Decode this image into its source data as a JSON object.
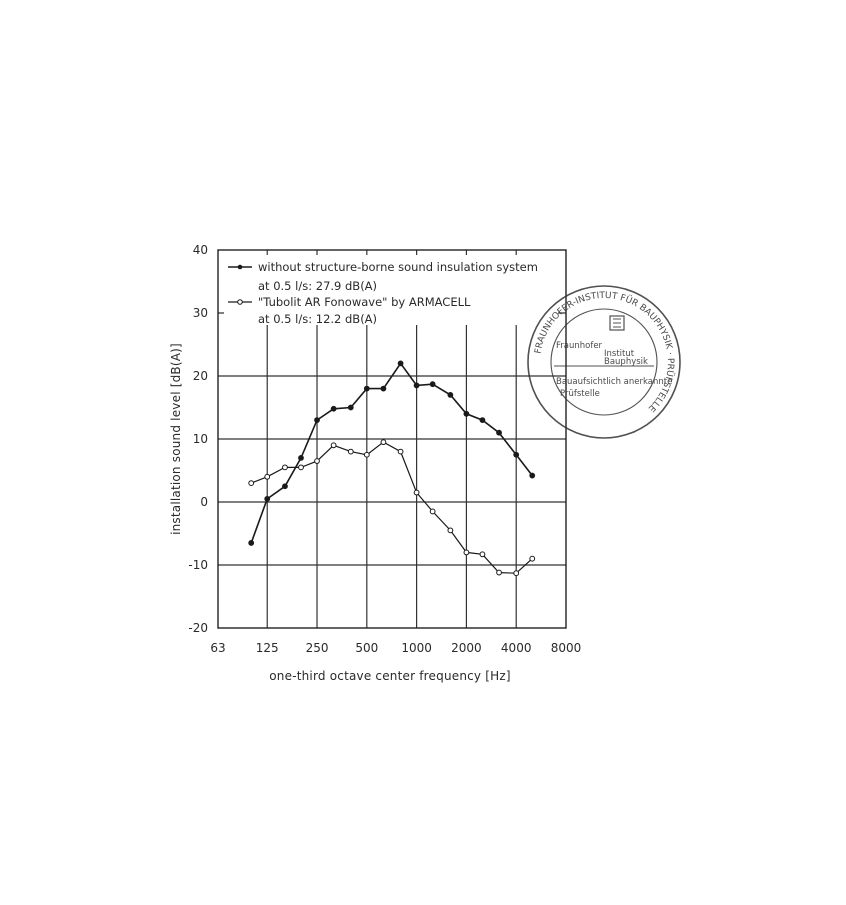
{
  "chart_data": {
    "type": "line",
    "xlabel": "one-third octave center frequency [Hz]",
    "ylabel": "installation sound level [dB(A)]",
    "x_scale": "log",
    "xlim": [
      63,
      8000
    ],
    "ylim": [
      -20,
      40
    ],
    "x_ticks": [
      63,
      125,
      250,
      500,
      1000,
      2000,
      4000,
      8000
    ],
    "x_tick_labels": [
      "63",
      "125",
      "250",
      "500",
      "1000",
      "2000",
      "4000",
      "8000"
    ],
    "y_ticks": [
      -20,
      -10,
      0,
      10,
      20,
      30,
      40
    ],
    "y_tick_labels": [
      "-20",
      "-10",
      "0",
      "10",
      "20",
      "30",
      "40"
    ],
    "grid": true,
    "legend_position": "top-left",
    "series": [
      {
        "name": "without structure-borne sound insulation system",
        "legend_line2": "at 0.5 l/s: 27.9 dB(A)",
        "marker": "filled",
        "color": "#1a1a1a",
        "x": [
          100,
          125,
          160,
          200,
          250,
          315,
          400,
          500,
          630,
          800,
          1000,
          1250,
          1600,
          2000,
          2500,
          3150,
          4000,
          5000
        ],
        "y": [
          -6.5,
          0.5,
          2.5,
          7,
          13,
          14.8,
          15,
          18,
          18,
          22,
          18.5,
          18.7,
          17,
          14,
          13,
          11,
          7.5,
          4.2
        ]
      },
      {
        "name": "\"Tubolit AR Fonowave\" by ARMACELL",
        "legend_line2": "at 0.5 l/s: 12.2 dB(A)",
        "marker": "open",
        "color": "#1a1a1a",
        "x": [
          100,
          125,
          160,
          200,
          250,
          315,
          400,
          500,
          630,
          800,
          1000,
          1250,
          1600,
          2000,
          2500,
          3150,
          4000,
          5000
        ],
        "y": [
          3,
          4,
          5.5,
          5.5,
          6.5,
          9,
          8,
          7.5,
          9.5,
          8,
          1.5,
          -1.5,
          -4.5,
          -8,
          -8.3,
          -11.2,
          -11.3,
          -9
        ]
      }
    ]
  },
  "stamp": {
    "ring_text": "FRAUNHOFER-INSTITUT FÜR BAUPHYSIK · PRÜFSTELLE",
    "line1": "Fraunhofer",
    "line2": "Institut",
    "line3": "Bauphysik",
    "line4": "Bauaufsichtlich anerkannte",
    "line5": "Prüfstelle"
  }
}
